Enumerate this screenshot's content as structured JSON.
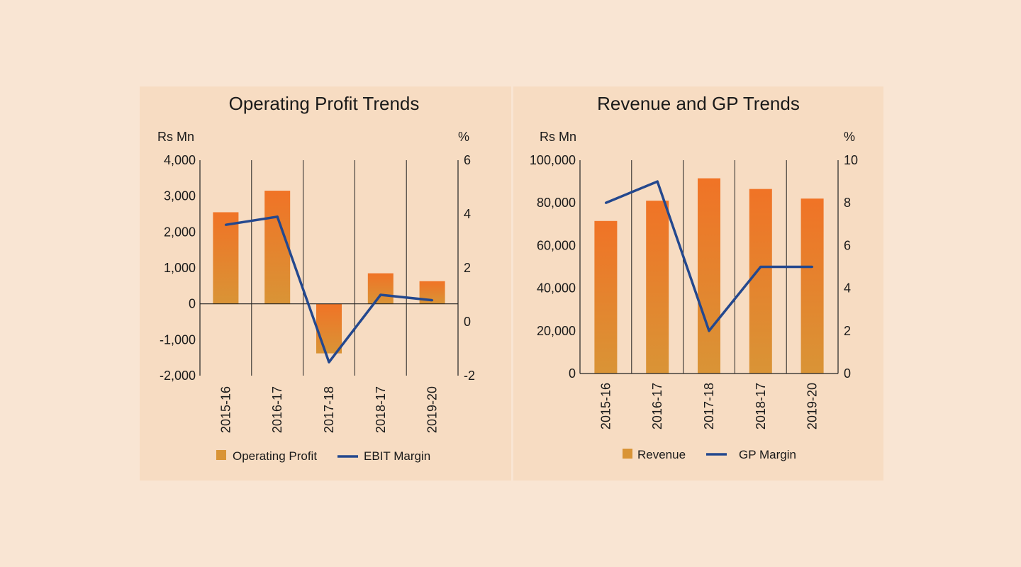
{
  "colors": {
    "background": "#f9e5d3",
    "panel": "#f7dcc2",
    "bar_top": "#f07326",
    "bar_bottom": "#d99436",
    "line": "#24488e"
  },
  "chart_data": [
    {
      "type": "bar",
      "title": "Operating Profit Trends",
      "left_unit": "Rs Mn",
      "right_unit": "%",
      "categories": [
        "2015-16",
        "2016-17",
        "2017-18",
        "2018-17",
        "2019-20"
      ],
      "ylim": [
        -2000,
        4000
      ],
      "y_ticks": [
        "4,000",
        "3,000",
        "2,000",
        "1,000",
        "0",
        "-1,000",
        "-2,000"
      ],
      "y2lim": [
        -2,
        6
      ],
      "y2_ticks": [
        "6",
        "4",
        "2",
        "0",
        "-2"
      ],
      "series": [
        {
          "name": "Operating Profit",
          "type": "bar",
          "axis": "left",
          "values": [
            2550,
            3150,
            -1380,
            850,
            630
          ]
        },
        {
          "name": "EBIT Margin",
          "type": "line",
          "axis": "right",
          "values": [
            3.6,
            3.9,
            -1.5,
            1.0,
            0.8
          ]
        }
      ],
      "legend": "bottom"
    },
    {
      "type": "bar",
      "title": "Revenue and GP Trends",
      "left_unit": "Rs Mn",
      "right_unit": "%",
      "categories": [
        "2015-16",
        "2016-17",
        "2017-18",
        "2018-17",
        "2019-20"
      ],
      "ylim": [
        0,
        100000
      ],
      "y_ticks": [
        "100,000",
        "80,000",
        "60,000",
        "40,000",
        "20,000",
        "0"
      ],
      "y2lim": [
        0,
        10
      ],
      "y2_ticks": [
        "10",
        "8",
        "6",
        "4",
        "2",
        "0"
      ],
      "series": [
        {
          "name": "Revenue",
          "type": "bar",
          "axis": "left",
          "values": [
            71500,
            81000,
            91500,
            86500,
            82000
          ]
        },
        {
          "name": "GP Margin",
          "type": "line",
          "axis": "right",
          "values": [
            8.0,
            9.0,
            2.0,
            5.0,
            5.0
          ]
        }
      ],
      "legend": "bottom"
    }
  ]
}
